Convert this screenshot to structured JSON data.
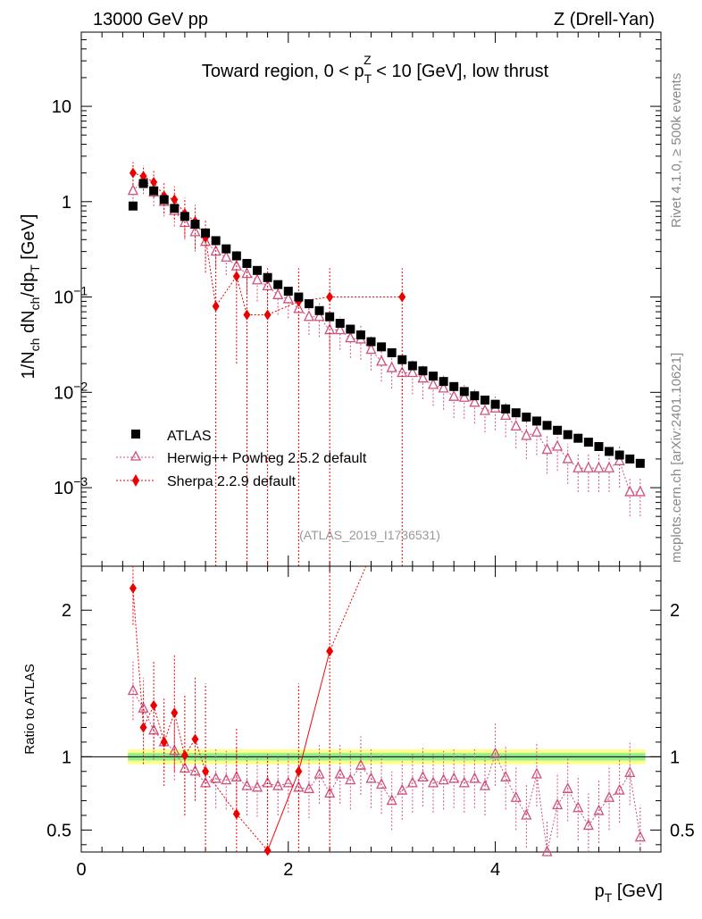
{
  "header": {
    "left": "13000 GeV pp",
    "right": "Z (Drell-Yan)"
  },
  "side_labels": {
    "rivet": "Rivet 4.1.0, ≥ 500k events",
    "mcplots": "mcplots.cern.ch [arXiv:2401.10621]"
  },
  "colors": {
    "atlas": "#000000",
    "herwig": "#d05080",
    "sherpa": "#ee0000",
    "band_inner": "#90ee90",
    "band_outer": "#ffff88"
  },
  "chart_data": [
    {
      "type": "scatter",
      "panel": "main",
      "title_prefix": "Toward region, 0 < p",
      "title_sub": "T",
      "title_sup": "Z",
      "title_suffix": " < 10 [GeV], low thrust",
      "ylabel": "1/N_ch dN_ch/dp_T [GeV]",
      "ylabel_parts": {
        "a": "1/N",
        "a_sub": "ch",
        "b": " dN",
        "b_sub": "ch",
        "c": "/dp",
        "c_sub": "T",
        "d": " [GeV]"
      },
      "yscale": "log",
      "ylim": [
        0.00015,
        60
      ],
      "xlim": [
        0,
        5.6
      ],
      "ytick_labels": [
        {
          "value": 10,
          "base": "10",
          "exp": ""
        },
        {
          "value": 1,
          "base": "1",
          "exp": ""
        },
        {
          "value": 0.1,
          "base": "10",
          "exp": "−1"
        },
        {
          "value": 0.01,
          "base": "10",
          "exp": "−2"
        },
        {
          "value": 0.001,
          "base": "10",
          "exp": "−3"
        }
      ],
      "watermark": "(ATLAS_2019_I1736531)",
      "legend": [
        "ATLAS",
        "Herwig++ Powheg 2.5.2 default",
        "Sherpa 2.2.9 default"
      ],
      "series": [
        {
          "name": "ATLAS",
          "x": [
            0.5,
            0.6,
            0.7,
            0.8,
            0.9,
            1.0,
            1.1,
            1.2,
            1.3,
            1.4,
            1.5,
            1.6,
            1.7,
            1.8,
            1.9,
            2.0,
            2.1,
            2.2,
            2.3,
            2.4,
            2.5,
            2.6,
            2.7,
            2.8,
            2.9,
            3.0,
            3.1,
            3.2,
            3.3,
            3.4,
            3.5,
            3.6,
            3.7,
            3.8,
            3.9,
            4.0,
            4.1,
            4.2,
            4.3,
            4.4,
            4.5,
            4.6,
            4.7,
            4.8,
            4.9,
            5.0,
            5.1,
            5.2,
            5.3,
            5.4
          ],
          "y": [
            0.9,
            1.55,
            1.3,
            1.05,
            0.85,
            0.7,
            0.58,
            0.47,
            0.39,
            0.32,
            0.27,
            0.225,
            0.19,
            0.16,
            0.135,
            0.115,
            0.1,
            0.085,
            0.072,
            0.062,
            0.053,
            0.046,
            0.04,
            0.034,
            0.03,
            0.026,
            0.022,
            0.019,
            0.0168,
            0.0148,
            0.013,
            0.0115,
            0.0102,
            0.0092,
            0.0083,
            0.0075,
            0.0067,
            0.0061,
            0.0055,
            0.005,
            0.0045,
            0.004,
            0.0036,
            0.0033,
            0.003,
            0.0027,
            0.0024,
            0.0022,
            0.002,
            0.0018
          ]
        },
        {
          "name": "Herwig++ Powheg 2.5.2 default",
          "x": [
            0.5,
            0.6,
            0.7,
            0.8,
            0.9,
            1.0,
            1.1,
            1.2,
            1.3,
            1.4,
            1.5,
            1.6,
            1.7,
            1.8,
            1.9,
            2.0,
            2.1,
            2.2,
            2.3,
            2.4,
            2.5,
            2.6,
            2.7,
            2.8,
            2.9,
            3.0,
            3.1,
            3.2,
            3.3,
            3.4,
            3.5,
            3.6,
            3.7,
            3.8,
            3.9,
            4.0,
            4.1,
            4.2,
            4.3,
            4.4,
            4.5,
            4.6,
            4.7,
            4.8,
            4.9,
            5.0,
            5.1,
            5.2,
            5.3,
            5.4
          ],
          "y": [
            1.3,
            1.7,
            1.25,
            1.0,
            0.8,
            0.6,
            0.48,
            0.38,
            0.3,
            0.26,
            0.21,
            0.175,
            0.15,
            0.13,
            0.105,
            0.095,
            0.075,
            0.062,
            0.062,
            0.045,
            0.045,
            0.037,
            0.036,
            0.028,
            0.021,
            0.018,
            0.016,
            0.016,
            0.014,
            0.012,
            0.011,
            0.009,
            0.0088,
            0.0078,
            0.0064,
            0.0068,
            0.0057,
            0.0044,
            0.0035,
            0.0038,
            0.0025,
            0.0027,
            0.002,
            0.0016,
            0.0016,
            0.0016,
            0.0016,
            0.0019,
            0.0009,
            0.0009
          ],
          "ylo": [
            0.9,
            1.2,
            0.9,
            0.7,
            0.55,
            0.4,
            0.3,
            0.25,
            0.2,
            0.17,
            0.13,
            0.11,
            0.09,
            0.08,
            0.065,
            0.06,
            0.045,
            0.04,
            0.038,
            0.028,
            0.028,
            0.023,
            0.022,
            0.017,
            0.013,
            0.011,
            0.0095,
            0.0095,
            0.0085,
            0.0072,
            0.0066,
            0.0054,
            0.0053,
            0.0047,
            0.0038,
            0.004,
            0.0034,
            0.0026,
            0.002,
            0.0022,
            0.0014,
            0.0015,
            0.0011,
            0.0009,
            0.0009,
            0.0009,
            0.0009,
            0.001,
            0.0005,
            0.0005
          ],
          "yhi": [
            1.7,
            2.2,
            1.6,
            1.3,
            1.05,
            0.8,
            0.65,
            0.52,
            0.4,
            0.35,
            0.29,
            0.24,
            0.21,
            0.18,
            0.145,
            0.13,
            0.105,
            0.085,
            0.086,
            0.062,
            0.062,
            0.051,
            0.05,
            0.039,
            0.029,
            0.025,
            0.022,
            0.022,
            0.019,
            0.017,
            0.015,
            0.0125,
            0.012,
            0.0108,
            0.0089,
            0.0095,
            0.008,
            0.0062,
            0.005,
            0.0054,
            0.0036,
            0.0039,
            0.0029,
            0.0023,
            0.0023,
            0.0023,
            0.0023,
            0.0028,
            0.0013,
            0.0013
          ]
        },
        {
          "name": "Sherpa 2.2.9 default",
          "x": [
            0.5,
            0.6,
            0.7,
            0.8,
            0.9,
            1.0,
            1.1,
            1.2,
            1.3,
            1.5,
            1.6,
            1.8,
            2.1,
            2.4,
            3.1
          ],
          "y": [
            2.0,
            1.85,
            1.6,
            1.15,
            1.05,
            0.75,
            0.62,
            0.42,
            0.08,
            0.165,
            0.065,
            0.065,
            0.09,
            0.1,
            0.1
          ],
          "ylo": [
            1.5,
            1.3,
            1.1,
            0.75,
            0.65,
            0.42,
            0.32,
            0.18,
            0.0001,
            0.02,
            0.0001,
            0.0001,
            0.0001,
            0.0001,
            0.0001
          ],
          "yhi": [
            2.6,
            2.4,
            2.1,
            1.6,
            1.45,
            1.1,
            0.92,
            0.66,
            0.35,
            0.31,
            0.2,
            0.2,
            0.2,
            0.2,
            0.2
          ]
        }
      ]
    },
    {
      "type": "scatter",
      "panel": "ratio",
      "ylabel": "Ratio to ATLAS",
      "xlabel": "p_T [GeV]",
      "xlabel_parts": {
        "a": "p",
        "a_sub": "T",
        "b": " [GeV]"
      },
      "ylim": [
        0.35,
        2.3
      ],
      "xlim": [
        0,
        5.6
      ],
      "xticks": [
        0,
        2,
        4
      ],
      "ytick_labels": [
        {
          "value": 2,
          "label": "2"
        },
        {
          "value": 1,
          "label": "1"
        },
        {
          "value": 0.5,
          "label": "0.5"
        }
      ],
      "band_x": [
        0.45,
        5.45
      ],
      "band_inner": [
        0.975,
        1.025
      ],
      "band_outer": [
        0.95,
        1.05
      ],
      "series": [
        {
          "name": "Herwig++ Powheg 2.5.2 default",
          "x": [
            0.5,
            0.6,
            0.7,
            0.8,
            0.9,
            1.0,
            1.1,
            1.2,
            1.3,
            1.4,
            1.5,
            1.6,
            1.7,
            1.8,
            1.9,
            2.0,
            2.1,
            2.2,
            2.3,
            2.4,
            2.5,
            2.6,
            2.7,
            2.8,
            2.9,
            3.0,
            3.1,
            3.2,
            3.3,
            3.4,
            3.5,
            3.6,
            3.7,
            3.8,
            3.9,
            4.0,
            4.1,
            4.2,
            4.3,
            4.4,
            4.5,
            4.6,
            4.7,
            4.8,
            4.9,
            5.0,
            5.1,
            5.2,
            5.3,
            5.4
          ],
          "y": [
            1.45,
            1.33,
            1.18,
            1.1,
            1.04,
            0.92,
            0.9,
            0.82,
            0.85,
            0.84,
            0.86,
            0.8,
            0.79,
            0.82,
            0.8,
            0.82,
            0.79,
            0.78,
            0.88,
            0.75,
            0.88,
            0.84,
            0.94,
            0.85,
            0.81,
            0.7,
            0.77,
            0.82,
            0.86,
            0.82,
            0.84,
            0.85,
            0.82,
            0.85,
            0.8,
            1.02,
            0.86,
            0.72,
            0.6,
            0.88,
            0.33,
            0.67,
            0.78,
            0.65,
            0.53,
            0.63,
            0.72,
            0.77,
            0.89,
            0.45
          ],
          "ylo": [
            1.25,
            1.12,
            0.98,
            0.9,
            0.84,
            0.72,
            0.7,
            0.62,
            0.65,
            0.64,
            0.66,
            0.6,
            0.59,
            0.62,
            0.6,
            0.62,
            0.59,
            0.58,
            0.68,
            0.55,
            0.68,
            0.64,
            0.74,
            0.65,
            0.61,
            0.5,
            0.57,
            0.62,
            0.66,
            0.62,
            0.64,
            0.65,
            0.62,
            0.65,
            0.6,
            0.8,
            0.64,
            0.5,
            0.38,
            0.66,
            0.1,
            0.45,
            0.56,
            0.43,
            0.31,
            0.41,
            0.5,
            0.55,
            0.67,
            0.23
          ],
          "yhi": [
            1.65,
            1.54,
            1.38,
            1.3,
            1.24,
            1.12,
            1.1,
            1.02,
            1.05,
            1.04,
            1.06,
            1.0,
            0.99,
            1.02,
            1.0,
            1.02,
            0.99,
            0.98,
            1.08,
            0.95,
            1.08,
            1.04,
            1.14,
            1.05,
            1.01,
            0.9,
            0.97,
            1.02,
            1.06,
            1.02,
            1.04,
            1.05,
            1.02,
            1.05,
            1.0,
            1.24,
            1.08,
            0.94,
            0.82,
            1.1,
            0.56,
            0.89,
            1.0,
            0.87,
            0.75,
            0.85,
            0.94,
            0.99,
            1.11,
            0.67
          ]
        },
        {
          "name": "Sherpa 2.2.9 default",
          "x": [
            0.5,
            0.6,
            0.7,
            0.8,
            0.9,
            1.0,
            1.1,
            1.2,
            1.5,
            1.8,
            2.1,
            2.4
          ],
          "y": [
            2.15,
            1.2,
            1.35,
            1.1,
            1.3,
            1.01,
            1.12,
            0.9,
            0.61,
            0.36,
            0.9,
            1.72
          ],
          "ylo": [
            1.9,
            0.95,
            1.05,
            0.8,
            0.9,
            0.6,
            0.7,
            0.3,
            0.2,
            0.2,
            0.2,
            0.2
          ],
          "yhi": [
            2.4,
            1.45,
            1.65,
            1.4,
            1.7,
            1.42,
            1.54,
            1.5,
            1.2,
            1.0,
            1.5,
            2.4
          ],
          "trend_line": {
            "x": [
              1.8,
              2.1,
              2.4,
              2.75
            ],
            "y": [
              0.36,
              0.9,
              1.72,
              2.4
            ]
          }
        }
      ]
    }
  ]
}
